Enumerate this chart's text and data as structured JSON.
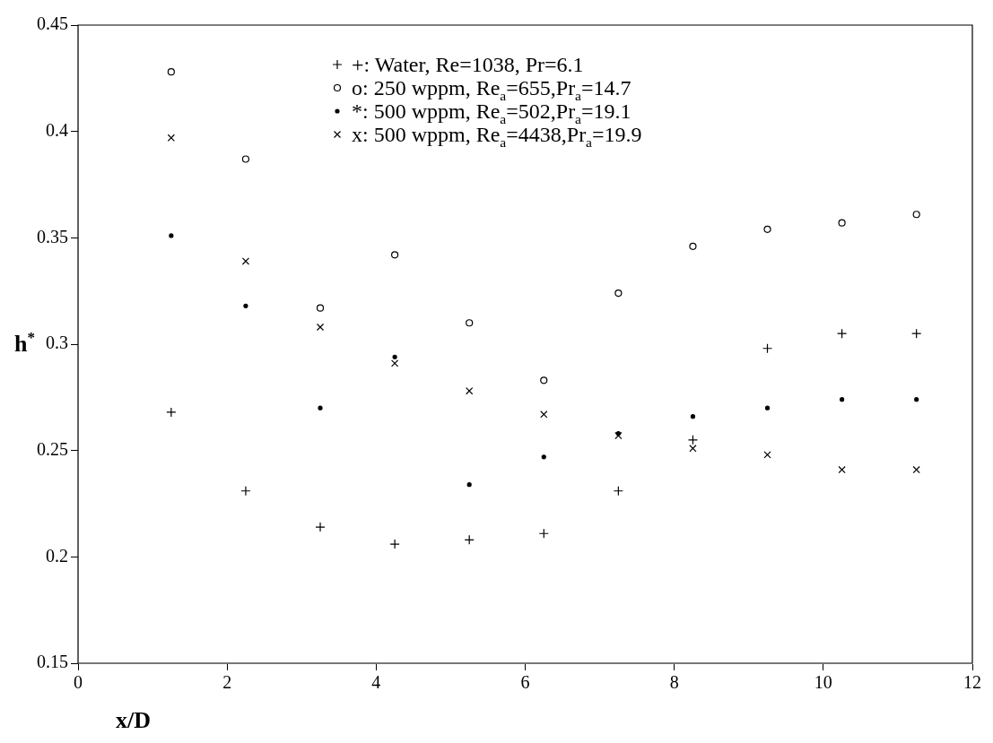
{
  "chart_data": {
    "type": "scatter",
    "xlabel": "x/D",
    "ylabel": "h$^{*}$",
    "xlim": [
      0,
      12
    ],
    "xticks": [
      0,
      2,
      4,
      6,
      8,
      10,
      12
    ],
    "ylim": [
      0.15,
      0.45
    ],
    "yticks": [
      0.15,
      0.2,
      0.25,
      0.3,
      0.35,
      0.4,
      0.45
    ],
    "x": [
      1.25,
      2.25,
      3.25,
      4.25,
      5.25,
      6.25,
      7.25,
      8.25,
      9.25,
      10.25,
      11.25
    ],
    "legend": "top",
    "grid": false,
    "series": [
      {
        "name": "+: Water, Re=1038, Pr=6.1",
        "color": "#000000",
        "marker": "plus",
        "values": [
          0.268,
          0.231,
          0.214,
          0.206,
          0.208,
          0.211,
          0.231,
          0.255,
          0.298,
          0.305,
          0.305
        ]
      },
      {
        "name": "o: 250 wppm, Re$_{a}$=655,Pr$_{a}$=14.7",
        "color": "#000000",
        "marker": "circle",
        "values": [
          0.428,
          0.387,
          0.317,
          0.342,
          0.31,
          0.283,
          0.324,
          0.346,
          0.354,
          0.357,
          0.361
        ]
      },
      {
        "name": "*: 500 wppm, Re$_{a}$=502,Pr$_{a}$=19.1",
        "color": "#000000",
        "values": [
          0.351,
          0.318,
          0.27,
          0.294,
          0.234,
          0.247,
          0.258,
          0.266,
          0.27,
          0.274,
          0.274
        ]
      },
      {
        "name": "x: 500 wppm, Re$_{a}$=4438,Pr$_{a}$=19.9",
        "color": "#000000",
        "marker": "cross",
        "values": [
          0.397,
          0.339,
          0.308,
          0.291,
          0.278,
          0.267,
          0.257,
          0.251,
          0.248,
          0.241,
          0.241
        ]
      }
    ]
  }
}
